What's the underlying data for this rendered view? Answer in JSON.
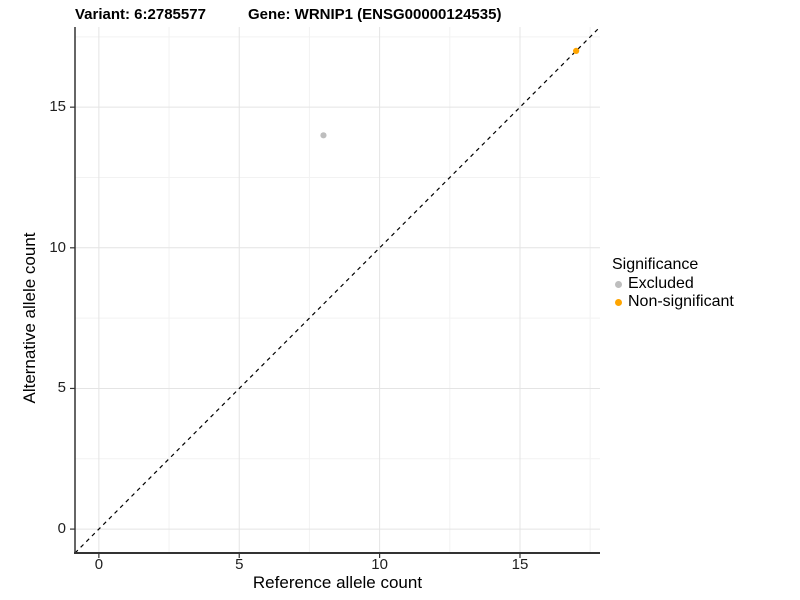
{
  "figure": {
    "title_left": "Variant: 6:2785577",
    "title_right": "Gene: WRNIP1 (ENSG00000124535)"
  },
  "chart_data": {
    "type": "scatter",
    "title_left": "Variant: 6:2785577",
    "title_right": "Gene: WRNIP1 (ENSG00000124535)",
    "xlabel": "Reference allele count",
    "ylabel": "Alternative allele count",
    "xlim": [
      -0.85,
      17.85
    ],
    "ylim": [
      -0.85,
      17.85
    ],
    "x_ticks": [
      0,
      5,
      10,
      15
    ],
    "y_ticks": [
      0,
      5,
      10,
      15
    ],
    "x_minor_ticks": [
      2.5,
      7.5,
      12.5,
      17.5
    ],
    "y_minor_ticks": [
      2.5,
      7.5,
      12.5,
      17.5
    ],
    "grid": true,
    "identity_line": {
      "slope": 1,
      "intercept": 0,
      "style": "dashed",
      "color": "#000000"
    },
    "series": [
      {
        "name": "Excluded",
        "color": "#BEBEBE",
        "points": [
          {
            "x": 8,
            "y": 14
          }
        ]
      },
      {
        "name": "Non-significant",
        "color": "#FFA500",
        "points": [
          {
            "x": 17,
            "y": 17
          }
        ]
      }
    ],
    "legend": {
      "title": "Significance",
      "position": "right",
      "entries": [
        {
          "label": "Excluded",
          "color": "#BEBEBE"
        },
        {
          "label": "Non-significant",
          "color": "#FFA500"
        }
      ]
    },
    "style": {
      "major_grid_color": "#E4E4E4",
      "minor_grid_color": "#F2F2F2",
      "axis_line_color": "#333333",
      "tick_color": "#333333",
      "point_radius": 3.1
    }
  }
}
